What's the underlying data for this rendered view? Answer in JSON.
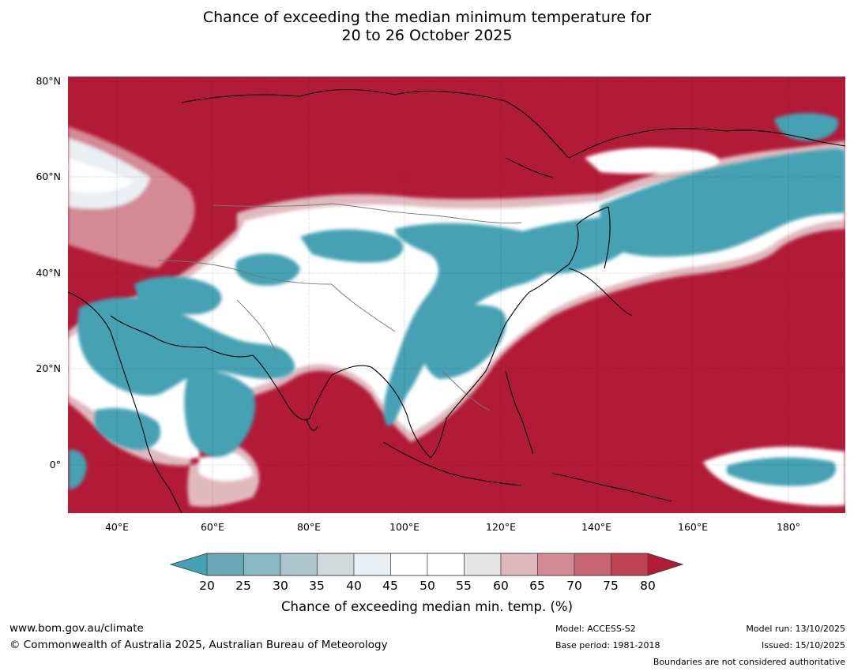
{
  "title_line1": "Chance of exceeding the median minimum temperature for",
  "title_line2": "20 to 26 October 2025",
  "map": {
    "lon_range": [
      30,
      192
    ],
    "lat_range": [
      -10,
      81
    ],
    "lat_labels": [
      "80°N",
      "60°N",
      "40°N",
      "20°N",
      "0°"
    ],
    "lon_labels": [
      "40°E",
      "60°E",
      "80°E",
      "100°E",
      "120°E",
      "140°E",
      "160°E",
      "180°"
    ],
    "background_color": "#b21b38"
  },
  "colorbar": {
    "ticks": [
      "20",
      "25",
      "30",
      "35",
      "40",
      "45",
      "50",
      "55",
      "60",
      "65",
      "70",
      "75",
      "80"
    ],
    "colors": [
      "#6aa7b6",
      "#88b8c3",
      "#adc6cd",
      "#d3d8da",
      "#e9eff2",
      "#ffffff",
      "#ffffff",
      "#e4e4e4",
      "#e0b9bf",
      "#d48a95",
      "#c66472",
      "#bf4252"
    ],
    "under_color": "#44a1b3",
    "over_color": "#b21b38",
    "label": "Chance of exceeding median min. temp. (%)"
  },
  "footer": {
    "url": "www.bom.gov.au/climate",
    "copyright": "© Commonwealth of Australia 2025, Australian Bureau of Meteorology",
    "model": "Model: ACCESS-S2",
    "base_period": "Base period: 1981-2018",
    "model_run": "Model run: 13/10/2025",
    "issued": "Issued: 15/10/2025",
    "boundaries_note": "Boundaries are not considered authoritative"
  }
}
